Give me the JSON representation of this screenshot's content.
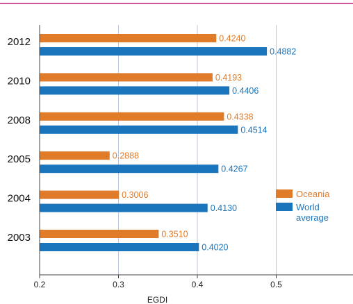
{
  "chart_data": {
    "type": "bar",
    "orientation": "horizontal",
    "xlabel": "EGDI",
    "xlim": [
      0.2,
      0.5
    ],
    "x_ticks": [
      "0.2",
      "0.3",
      "0.4",
      "0.5"
    ],
    "grid": true,
    "legend_placement": "right",
    "categories": [
      "2012",
      "2010",
      "2008",
      "2005",
      "2004",
      "2003"
    ],
    "series": [
      {
        "name": "Oceania",
        "color": "#e07b2a",
        "values": [
          0.424,
          0.4193,
          0.4338,
          0.2888,
          0.3006,
          0.351
        ],
        "labels": [
          "0.4240",
          "0.4193",
          "0.4338",
          "0.2888",
          "0.3006",
          "0.3510"
        ]
      },
      {
        "name": "World average",
        "name_lines": [
          "World",
          "average"
        ],
        "color": "#1a75bc",
        "values": [
          0.4882,
          0.4406,
          0.4514,
          0.4267,
          0.413,
          0.402
        ],
        "labels": [
          "0.4882",
          "0.4406",
          "0.4514",
          "0.4267",
          "0.4130",
          "0.4020"
        ]
      }
    ]
  },
  "colors": {
    "top_rule": "#c0187a",
    "axis": "#444444",
    "grid": "#b9c7dd"
  }
}
